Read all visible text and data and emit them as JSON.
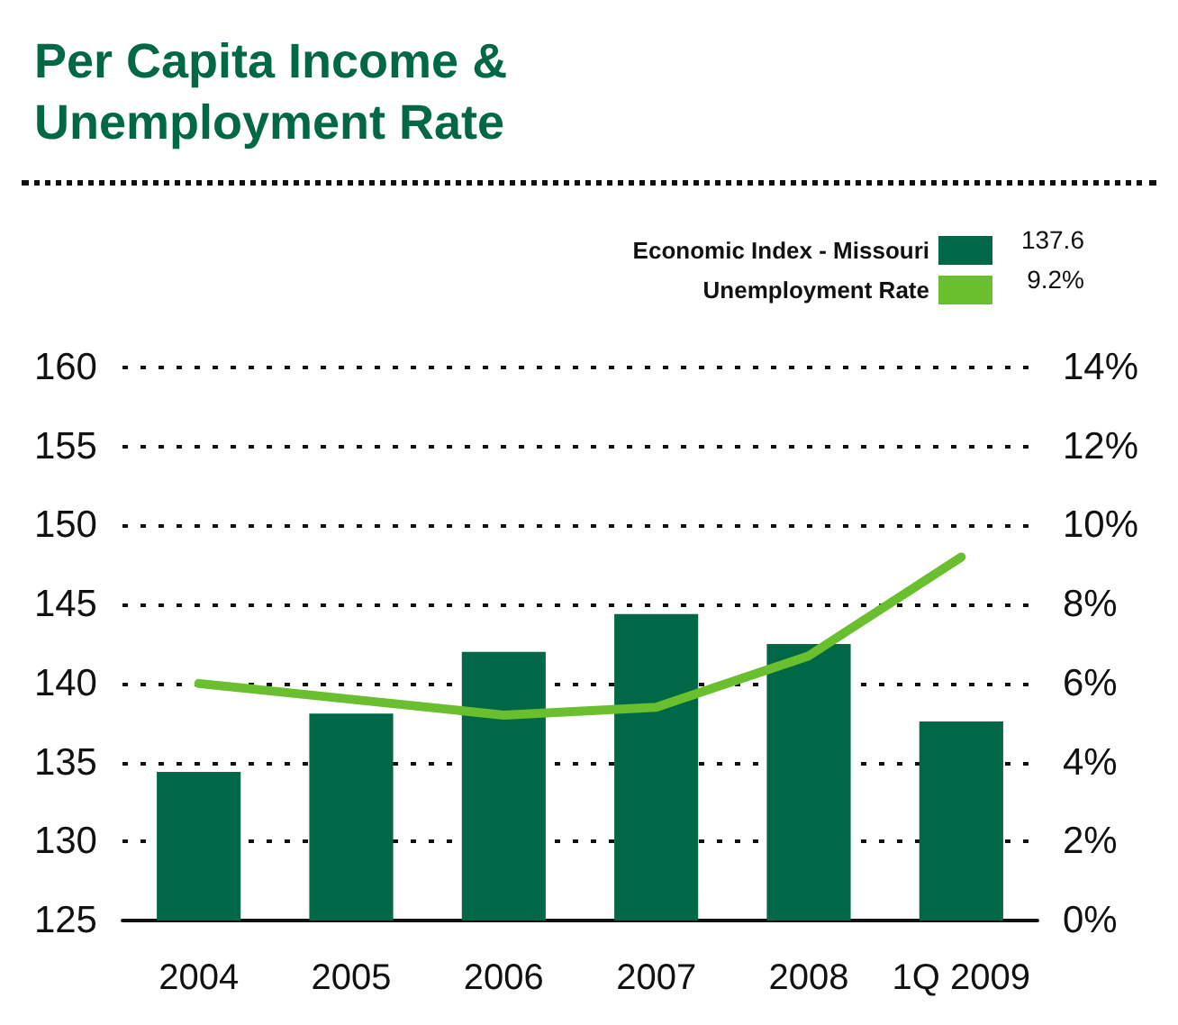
{
  "chart_data": {
    "type": "bar",
    "title": "Per Capita Income &\nUnemployment Rate",
    "annotations": [
      "137.6",
      "9.2%"
    ],
    "categories": [
      "2004",
      "2005",
      "2006",
      "2007",
      "2008",
      "1Q 2009"
    ],
    "series": [
      {
        "name": "Economic Index - Missouri",
        "color": "#006847",
        "values": [
          134.4,
          138.1,
          142.0,
          144.4,
          142.5,
          137.6
        ]
      },
      {
        "name": "Unemployment Rate",
        "type": "line",
        "axis": "y2",
        "color": "#6abf2e",
        "values": [
          6.0,
          5.6,
          5.2,
          5.4,
          6.7,
          9.2
        ]
      }
    ],
    "ylim": [
      125,
      160
    ],
    "yticks": [
      125,
      130,
      135,
      140,
      145,
      150,
      155,
      160
    ],
    "y2lim": [
      0,
      14
    ],
    "y2ticks": [
      {
        "value": 0,
        "label": "0%"
      },
      {
        "value": 2,
        "label": "2%"
      },
      {
        "value": 4,
        "label": "4%"
      },
      {
        "value": 6,
        "label": "6%"
      },
      {
        "value": 8,
        "label": "8%"
      },
      {
        "value": 10,
        "label": "10%"
      },
      {
        "value": 12,
        "label": "12%"
      },
      {
        "value": 14,
        "label": "14%"
      }
    ],
    "grid": "y",
    "legend": "top right",
    "marker": "none",
    "line_style": "solid"
  }
}
